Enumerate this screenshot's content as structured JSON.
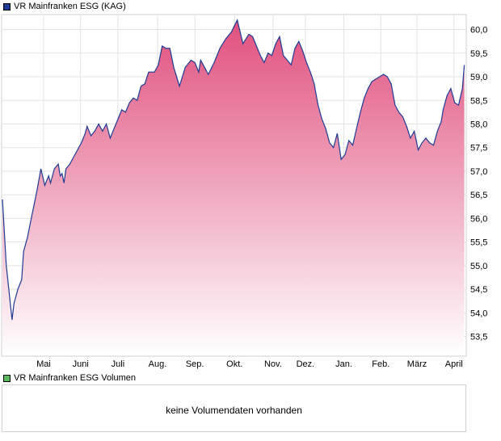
{
  "legend": {
    "price_label": "VR Mainfranken ESG (KAG)",
    "price_color": "#1f3a93",
    "volume_label": "VR Mainfranken ESG Volumen",
    "volume_color": "#5cb85c"
  },
  "volume_panel": {
    "message": "keine Volumendaten vorhanden"
  },
  "chart_data": {
    "type": "area",
    "title": "",
    "xlabel": "",
    "ylabel": "",
    "ylim": [
      53.1,
      60.3
    ],
    "y_ticks": [
      53.5,
      54.0,
      54.5,
      55.0,
      55.5,
      56.0,
      56.5,
      57.0,
      57.5,
      58.0,
      58.5,
      59.0,
      59.5,
      60.0
    ],
    "y_tick_labels": [
      "53,5",
      "54,0",
      "54,5",
      "55,0",
      "55,5",
      "56,0",
      "56,5",
      "57,0",
      "57,5",
      "58,0",
      "58,5",
      "59,0",
      "59,5",
      "60,0"
    ],
    "x_tick_labels": [
      "Mai",
      "Juni",
      "Juli",
      "Aug.",
      "Sep.",
      "Okt.",
      "Nov.",
      "Dez.",
      "Jan.",
      "Feb.",
      "März",
      "April"
    ],
    "x_tick_positions": [
      1.07,
      2.03,
      3.0,
      4.03,
      5.0,
      6.03,
      7.03,
      7.87,
      8.87,
      9.83,
      10.77,
      11.73
    ],
    "line_color": "#1f3a93",
    "fill_top_color": "#e0507e",
    "fill_bottom_color": "#ffffff",
    "grid": true,
    "series": [
      {
        "x": [
          0.0,
          0.1,
          0.25,
          0.3,
          0.4,
          0.5,
          0.55,
          0.65,
          0.75,
          0.9,
          1.0,
          1.1,
          1.2,
          1.25,
          1.35,
          1.45,
          1.5,
          1.55,
          1.6,
          1.65,
          1.75,
          1.85,
          1.95,
          2.05,
          2.15,
          2.2,
          2.3,
          2.4,
          2.5,
          2.6,
          2.7,
          2.8,
          2.9,
          3.0,
          3.1,
          3.2,
          3.3,
          3.4,
          3.5,
          3.6,
          3.7,
          3.8,
          3.95,
          4.05,
          4.15,
          4.25,
          4.35,
          4.45,
          4.6,
          4.75,
          4.9,
          5.0,
          5.1,
          5.15,
          5.25,
          5.35,
          5.5,
          5.65,
          5.8,
          5.95,
          6.1,
          6.25,
          6.4,
          6.5,
          6.6,
          6.7,
          6.8,
          6.9,
          7.0,
          7.1,
          7.2,
          7.3,
          7.4,
          7.5,
          7.6,
          7.7,
          7.8,
          7.9,
          8.0,
          8.1,
          8.2,
          8.3,
          8.4,
          8.5,
          8.6,
          8.7,
          8.8,
          8.9,
          9.0,
          9.1,
          9.2,
          9.3,
          9.4,
          9.5,
          9.6,
          9.7,
          9.8,
          9.9,
          10.0,
          10.1,
          10.2,
          10.3,
          10.4,
          10.5,
          10.6,
          10.7,
          10.8,
          10.9,
          11.0,
          11.1,
          11.2,
          11.3,
          11.4,
          11.45,
          11.55,
          11.65,
          11.75,
          11.85,
          11.95,
          12.0
        ],
        "y": [
          56.4,
          55.0,
          53.85,
          54.2,
          54.5,
          54.7,
          55.3,
          55.6,
          56.0,
          56.6,
          57.05,
          56.7,
          56.9,
          56.75,
          57.05,
          57.15,
          56.9,
          56.95,
          56.75,
          57.05,
          57.15,
          57.3,
          57.45,
          57.6,
          57.8,
          57.95,
          57.75,
          57.85,
          58.0,
          57.85,
          58.0,
          57.7,
          57.9,
          58.1,
          58.3,
          58.25,
          58.45,
          58.55,
          58.5,
          58.8,
          58.85,
          59.1,
          59.1,
          59.25,
          59.65,
          59.6,
          59.6,
          59.2,
          58.8,
          59.2,
          59.35,
          59.3,
          59.1,
          59.35,
          59.2,
          59.05,
          59.3,
          59.6,
          59.8,
          59.95,
          60.2,
          59.7,
          59.9,
          59.85,
          59.65,
          59.45,
          59.3,
          59.5,
          59.45,
          59.7,
          59.85,
          59.45,
          59.35,
          59.25,
          59.6,
          59.75,
          59.55,
          59.3,
          59.1,
          58.85,
          58.4,
          58.1,
          57.9,
          57.6,
          57.5,
          57.8,
          57.25,
          57.35,
          57.65,
          57.55,
          57.9,
          58.25,
          58.55,
          58.75,
          58.9,
          58.95,
          59.0,
          59.05,
          59.0,
          58.85,
          58.4,
          58.25,
          58.15,
          57.95,
          57.7,
          57.85,
          57.45,
          57.6,
          57.7,
          57.6,
          57.55,
          57.85,
          58.05,
          58.3,
          58.6,
          58.75,
          58.45,
          58.4,
          58.75,
          59.25
        ]
      }
    ]
  }
}
